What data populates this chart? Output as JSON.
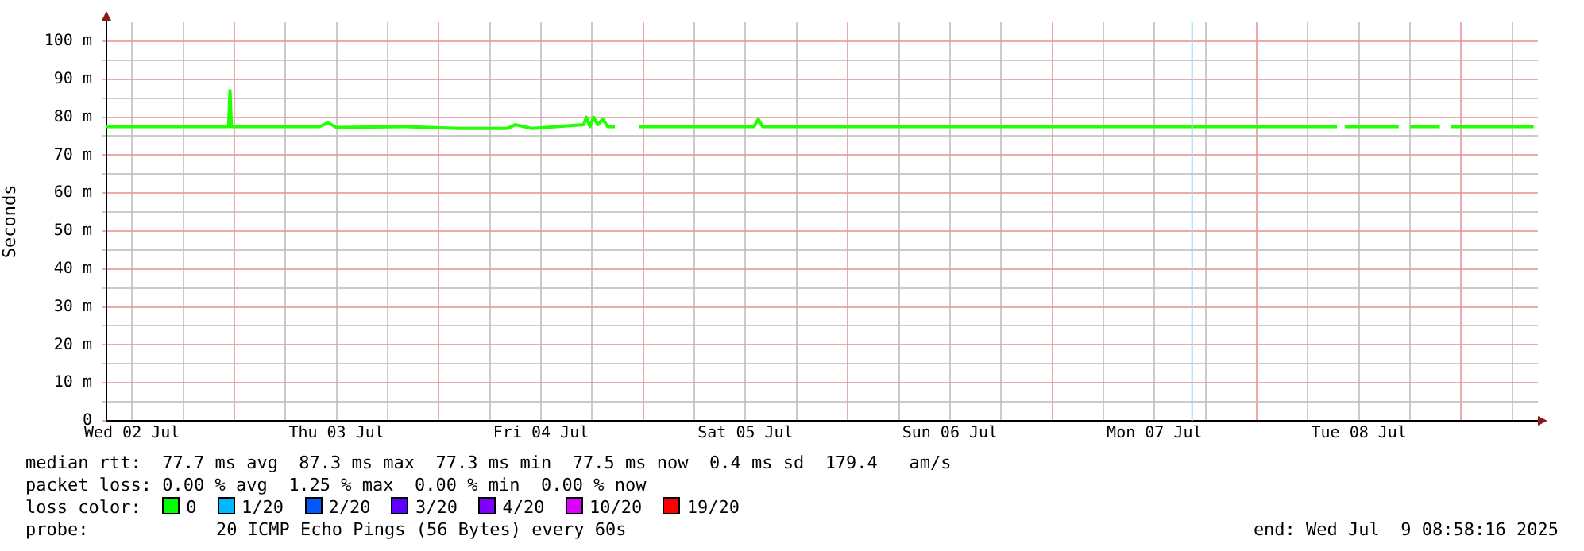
{
  "chart_data": {
    "type": "line",
    "ylabel": "Seconds",
    "xlim": [
      "2025-07-02T09:00",
      "2025-07-09T09:00"
    ],
    "xticks": [
      {
        "value": "2025-07-02T12:00",
        "label": "Wed 02 Jul"
      },
      {
        "value": "2025-07-02T18:00",
        "label": null
      },
      {
        "value": "2025-07-03T00:00",
        "label": null
      },
      {
        "value": "2025-07-03T06:00",
        "label": null
      },
      {
        "value": "2025-07-03T12:00",
        "label": "Thu 03 Jul"
      },
      {
        "value": "2025-07-03T18:00",
        "label": null
      },
      {
        "value": "2025-07-04T00:00",
        "label": null
      },
      {
        "value": "2025-07-04T06:00",
        "label": null
      },
      {
        "value": "2025-07-04T12:00",
        "label": "Fri 04 Jul"
      },
      {
        "value": "2025-07-04T18:00",
        "label": null
      },
      {
        "value": "2025-07-05T00:00",
        "label": null
      },
      {
        "value": "2025-07-05T06:00",
        "label": null
      },
      {
        "value": "2025-07-05T12:00",
        "label": "Sat 05 Jul"
      },
      {
        "value": "2025-07-05T18:00",
        "label": null
      },
      {
        "value": "2025-07-06T00:00",
        "label": null
      },
      {
        "value": "2025-07-06T06:00",
        "label": null
      },
      {
        "value": "2025-07-06T12:00",
        "label": "Sun 06 Jul"
      },
      {
        "value": "2025-07-06T18:00",
        "label": null
      },
      {
        "value": "2025-07-07T00:00",
        "label": null
      },
      {
        "value": "2025-07-07T06:00",
        "label": null
      },
      {
        "value": "2025-07-07T12:00",
        "label": "Mon 07 Jul"
      },
      {
        "value": "2025-07-07T18:00",
        "label": null
      },
      {
        "value": "2025-07-08T00:00",
        "label": null
      },
      {
        "value": "2025-07-08T06:00",
        "label": null
      },
      {
        "value": "2025-07-08T12:00",
        "label": "Tue 08 Jul"
      },
      {
        "value": "2025-07-08T18:00",
        "label": null
      },
      {
        "value": "2025-07-09T00:00",
        "label": null
      },
      {
        "value": "2025-07-09T06:00",
        "label": null
      }
    ],
    "ylim": [
      0,
      105
    ],
    "yticks": [
      {
        "value": 0,
        "label": "0"
      },
      {
        "value": 5,
        "label": null
      },
      {
        "value": 10,
        "label": "10 m"
      },
      {
        "value": 15,
        "label": null
      },
      {
        "value": 20,
        "label": "20 m"
      },
      {
        "value": 25,
        "label": null
      },
      {
        "value": 30,
        "label": "30 m"
      },
      {
        "value": 35,
        "label": null
      },
      {
        "value": 40,
        "label": "40 m"
      },
      {
        "value": 45,
        "label": null
      },
      {
        "value": 50,
        "label": "50 m"
      },
      {
        "value": 55,
        "label": null
      },
      {
        "value": 60,
        "label": "60 m"
      },
      {
        "value": 65,
        "label": null
      },
      {
        "value": 70,
        "label": "70 m"
      },
      {
        "value": 75,
        "label": null
      },
      {
        "value": 80,
        "label": "80 m"
      },
      {
        "value": 85,
        "label": null
      },
      {
        "value": 90,
        "label": "90 m"
      },
      {
        "value": 95,
        "label": null
      },
      {
        "value": 100,
        "label": "100 m"
      }
    ],
    "grid": true,
    "legend": false,
    "marker": "none",
    "line_style": "solid",
    "ref_lines": [
      {
        "axis": "x",
        "value": "2025-07-07T16:25",
        "color": "#a0d8f0"
      }
    ],
    "series": [
      {
        "color": "#22ff00",
        "x": [
          "2025-07-02T09:00",
          "2025-07-02T16:00",
          "2025-07-02T23:20",
          "2025-07-02T23:30",
          "2025-07-02T23:40",
          "2025-07-03T06:00",
          "2025-07-03T10:00",
          "2025-07-03T11:00",
          "2025-07-03T12:00",
          "2025-07-03T20:00",
          "2025-07-04T02:30",
          "2025-07-04T08:00",
          "2025-07-04T09:00",
          "2025-07-04T11:00",
          "2025-07-04T17:00",
          "2025-07-04T17:20",
          "2025-07-04T17:45",
          "2025-07-04T18:10",
          "2025-07-04T18:40",
          "2025-07-04T19:15",
          "2025-07-04T19:50",
          "2025-07-04T20:40",
          "2025-07-04T22:00",
          "2025-07-04T23:30",
          "2025-07-05T06:00",
          "2025-07-05T13:00",
          "2025-07-05T13:30",
          "2025-07-05T14:00",
          "2025-07-06T12:00",
          "2025-07-07T12:00",
          "2025-07-08T09:25",
          "2025-07-08T09:50",
          "2025-07-08T10:20",
          "2025-07-08T16:40",
          "2025-07-08T17:20",
          "2025-07-08T18:00",
          "2025-07-08T21:30",
          "2025-07-08T22:10",
          "2025-07-08T22:50",
          "2025-07-09T08:30"
        ],
        "values": [
          77.5,
          77.5,
          77.5,
          87,
          77.5,
          77.5,
          77.5,
          78.5,
          77.3,
          77.5,
          77,
          77,
          78,
          77,
          78,
          80,
          77.5,
          80,
          78,
          79.5,
          77.5,
          77.5,
          null,
          77.5,
          77.5,
          77.5,
          79.5,
          77.5,
          77.5,
          77.5,
          77.5,
          null,
          77.5,
          77.5,
          null,
          77.5,
          77.5,
          null,
          77.5,
          77.5
        ]
      }
    ],
    "annotations": [
      "median rtt:  77.7 ms avg  87.3 ms max  77.3 ms min  77.5 ms now  0.4 ms sd  179.4   am/s",
      "packet loss: 0.00 % avg  1.25 % max  0.00 % min  0.00 % now",
      "loss color:",
      "0",
      "1/20",
      "2/20",
      "3/20",
      "4/20",
      "10/20",
      "19/20",
      "probe:",
      "20 ICMP Echo Pings (56 Bytes) every 60s",
      "end: Wed Jul  9 08:58:16 2025"
    ]
  }
}
